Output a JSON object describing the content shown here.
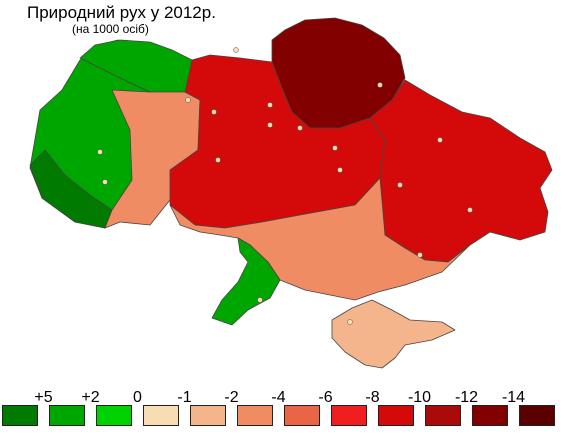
{
  "title": "Природний рух у 2012р.",
  "subtitle": "(на 1000 осіб)",
  "legend": {
    "ticks": [
      "+5",
      "+2",
      "0",
      "-1",
      "-2",
      "-4",
      "-6",
      "-8",
      "-10",
      "-12",
      "-14"
    ],
    "colors": [
      "#007a00",
      "#00a600",
      "#00d200",
      "#f8dcb4",
      "#f4b48c",
      "#f08c64",
      "#ea6446",
      "#f01e1e",
      "#d40a0a",
      "#aa0a0a",
      "#820000",
      "#5a0000"
    ]
  },
  "regions": {
    "west": "#00a600",
    "northwest": "#00a600",
    "carpathians": "#007a00",
    "central_west": "#f08c64",
    "center": "#d40a0a",
    "north": "#820000",
    "east": "#d40a0a",
    "south": "#f08c64",
    "odesa_south": "#00a600",
    "crimea": "#f4b48c"
  }
}
